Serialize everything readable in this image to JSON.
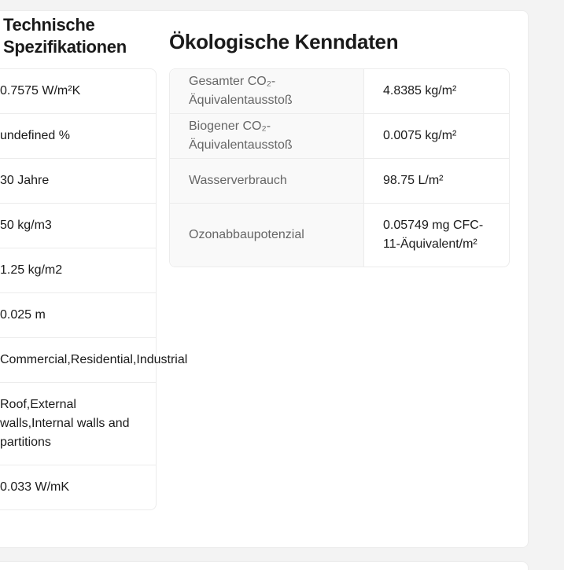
{
  "left_section": {
    "title": "Technische Spezifikationen",
    "values": [
      "0.7575 W/m²K",
      "undefined %",
      "30 Jahre",
      "50 kg/m3",
      "1.25 kg/m2",
      "0.025 m",
      "Commercial,Residential,Industrial",
      "Roof,External walls,Internal walls and partitions",
      "0.033 W/mK"
    ]
  },
  "right_section": {
    "title": "Ökologische Kenndaten",
    "rows": [
      {
        "label": "Gesamter CO₂-Äquivalentausstoß",
        "value": "4.8385 kg/m²"
      },
      {
        "label": "Biogener CO₂-Äquivalentausstoß",
        "value": "0.0075 kg/m²"
      },
      {
        "label": "Wasserverbrauch",
        "value": "98.75 L/m²"
      },
      {
        "label": "Ozonabbaupotenzial",
        "value": "0.05749 mg CFC-11-Äquivalent/m²"
      }
    ]
  }
}
